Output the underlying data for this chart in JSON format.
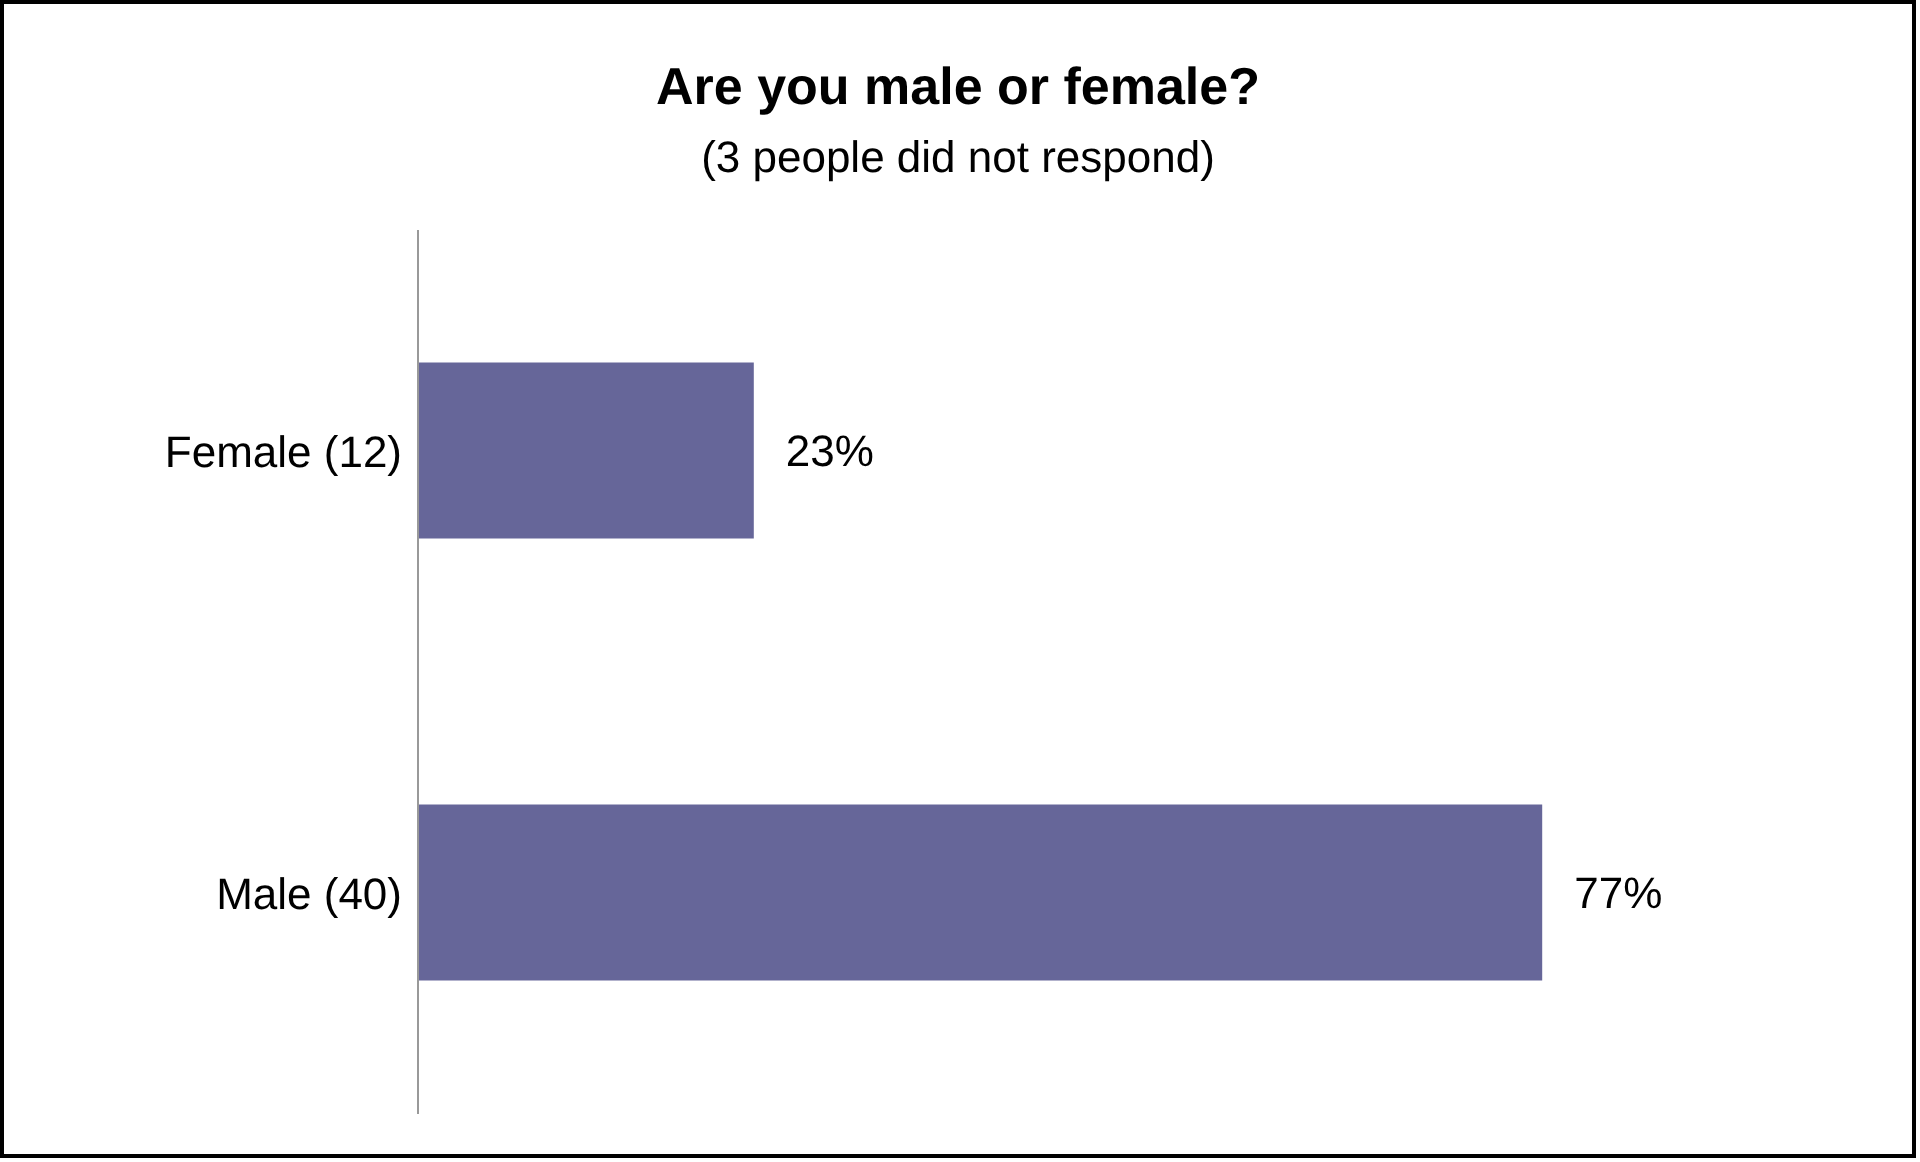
{
  "chart_data": {
    "type": "bar",
    "orientation": "horizontal",
    "title": "Are you male or female?",
    "subtitle": "(3 people did not respond)",
    "categories": [
      "Female (12)",
      "Male (40)"
    ],
    "values": [
      23,
      77
    ],
    "color": "#666699",
    "value_labels": [
      "23%",
      "77%"
    ],
    "grid": false,
    "legend": false
  }
}
